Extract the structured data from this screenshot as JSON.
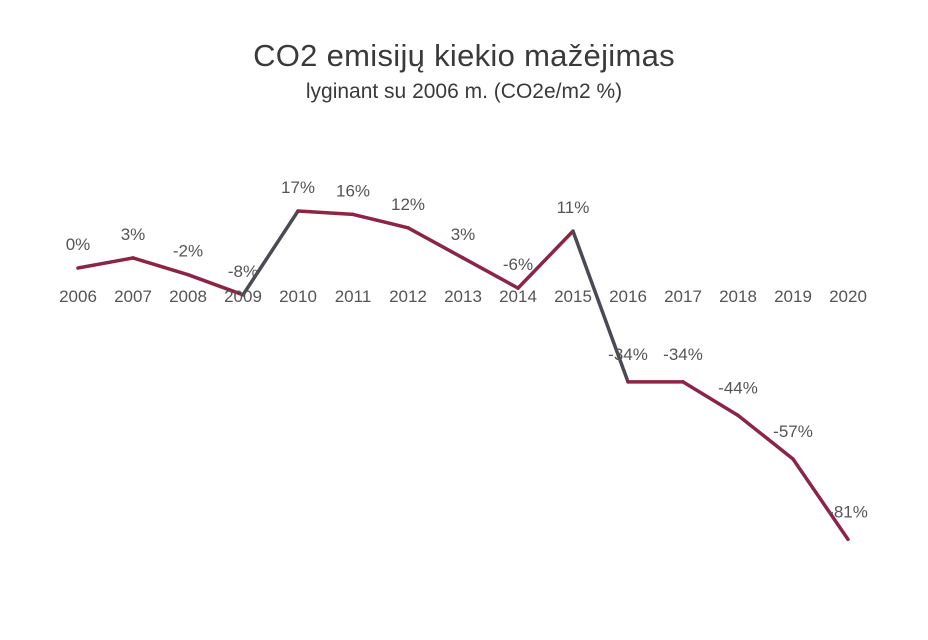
{
  "chart_data": {
    "type": "line",
    "title": "CO2 emisijų kiekio mažėjimas",
    "subtitle": "lyginant su 2006 m. (CO2e/m2 %)",
    "xlabel": "",
    "ylabel": "",
    "categories": [
      "2006",
      "2007",
      "2008",
      "2009",
      "2010",
      "2011",
      "2012",
      "2013",
      "2014",
      "2015",
      "2016",
      "2017",
      "2018",
      "2019",
      "2020"
    ],
    "series": [
      {
        "values": [
          0,
          3,
          -2,
          -8,
          17,
          16,
          12,
          3,
          -6,
          11,
          -34,
          -34,
          -44,
          -57,
          -81
        ],
        "labels": [
          "0%",
          "3%",
          "-2%",
          "-8%",
          "17%",
          "16%",
          "12%",
          "3%",
          "-6%",
          "11%",
          "-34%",
          "-34%",
          "-44%",
          "-57%",
          "-81%"
        ]
      }
    ],
    "ylim": [
      -86,
      20
    ],
    "grid": false,
    "legend": "none",
    "colors": {
      "line": "#8b2545",
      "dark_segment": "#4a4a52"
    }
  }
}
